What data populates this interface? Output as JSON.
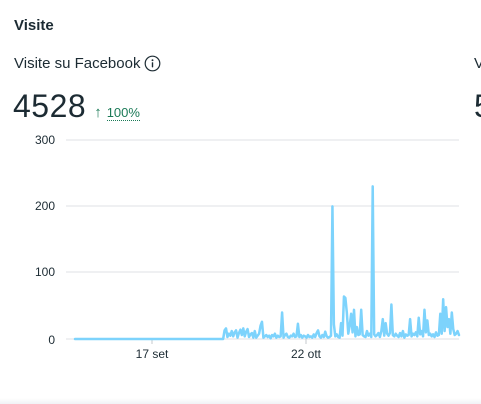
{
  "section": {
    "title": "Visite"
  },
  "metric": {
    "label": "Visite su Facebook",
    "value": "4528",
    "trend_arrow": "↑",
    "trend_value": "100%",
    "info_icon": "info-circle-icon",
    "trend_color": "#1b7a57"
  },
  "next_metric": {
    "label": "V",
    "value": "5"
  },
  "chart_data": {
    "type": "line",
    "y_ticks": [
      "300",
      "200",
      "100",
      "0"
    ],
    "x_ticks": [
      "17 set",
      "22 ott"
    ],
    "ylim": [
      0,
      300
    ],
    "grid": true,
    "line_color": "#7dd3fc",
    "series": [
      {
        "values": [
          0,
          0,
          0,
          0,
          0,
          0,
          0,
          0,
          0,
          0,
          0,
          0,
          0,
          0,
          0,
          0,
          0,
          0,
          0,
          0,
          0,
          0,
          0,
          0,
          0,
          0,
          0,
          0,
          0,
          0,
          0,
          0,
          0,
          0,
          0,
          0,
          0,
          0,
          0,
          0,
          0,
          0,
          0,
          0,
          0,
          0,
          0,
          0,
          0,
          0,
          0,
          0,
          0,
          0,
          0,
          0,
          0,
          0,
          0,
          0,
          0,
          0,
          0,
          0,
          0,
          0,
          0,
          0,
          0,
          0,
          0,
          0,
          0,
          0,
          0,
          0,
          0,
          0,
          0,
          0,
          0,
          0,
          0,
          0,
          0,
          0,
          0,
          0,
          0,
          0,
          0,
          0,
          0,
          0,
          0,
          0,
          0,
          0,
          0,
          0,
          0,
          0,
          0,
          0,
          13,
          16,
          3,
          8,
          5,
          12,
          4,
          10,
          13,
          2,
          9,
          14,
          6,
          16,
          4,
          11,
          15,
          3,
          7,
          9,
          2,
          12,
          2,
          5,
          8,
          20,
          26,
          2,
          4,
          6,
          3,
          5,
          1,
          6,
          4,
          8,
          2,
          5,
          3,
          4,
          40,
          2,
          6,
          8,
          3,
          2,
          5,
          4,
          8,
          3,
          4,
          23,
          3,
          6,
          2,
          5,
          4,
          2,
          6,
          3,
          4,
          2,
          7,
          3,
          9,
          13,
          4,
          2,
          6,
          3,
          11,
          4,
          2,
          3,
          5,
          200,
          22,
          4,
          7,
          3,
          2,
          24,
          5,
          64,
          62,
          40,
          8,
          20,
          38,
          10,
          44,
          4,
          18,
          6,
          7,
          44,
          6,
          4,
          3,
          12,
          5,
          8,
          3,
          230,
          7,
          4,
          6,
          9,
          3,
          12,
          30,
          5,
          24,
          8,
          5,
          9,
          52,
          6,
          4,
          8,
          5,
          3,
          9,
          4,
          12,
          2,
          7,
          5,
          6,
          30,
          4,
          8,
          6,
          10,
          4,
          32,
          7,
          12,
          4,
          44,
          10,
          28,
          6,
          8,
          4,
          7,
          3,
          10,
          5,
          6,
          38,
          8,
          60,
          12,
          48,
          18,
          30,
          8,
          40,
          15,
          6,
          8,
          12,
          6
        ]
      }
    ]
  }
}
